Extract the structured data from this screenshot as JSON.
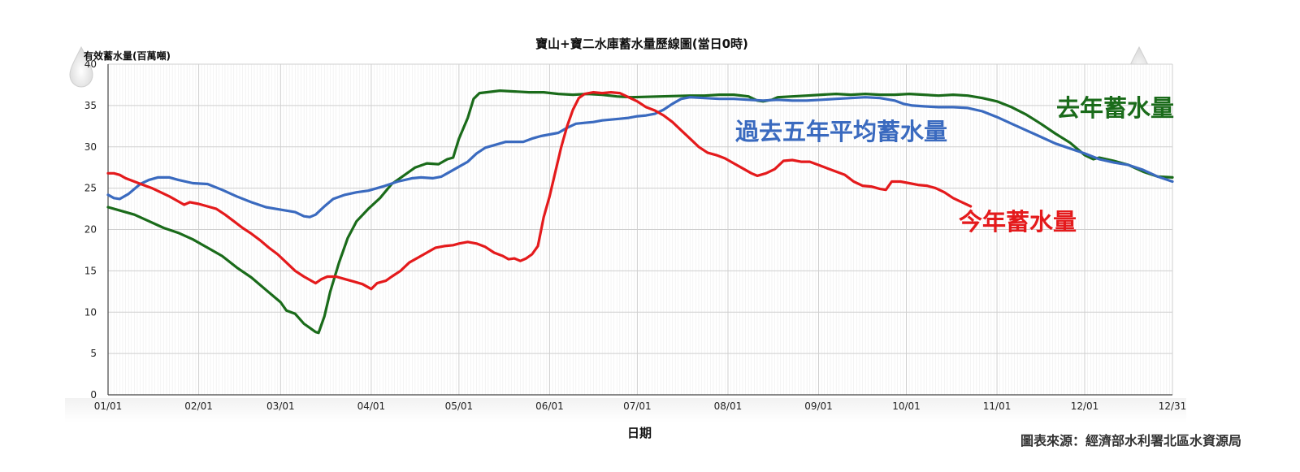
{
  "chart_data": {
    "type": "line",
    "title": "寶山+寶二水庫蓄水量歷線圖(當日0時)",
    "ylabel": "有效蓄水量(百萬噸)",
    "xlabel": "日期",
    "source": "圖表來源：經濟部水利署北區水資源局",
    "ylim": [
      0,
      40
    ],
    "xlim": [
      1,
      365
    ],
    "yticks": [
      "0",
      "5",
      "10",
      "15",
      "20",
      "25",
      "30",
      "35",
      "40"
    ],
    "xticks": [
      {
        "label": "01/01",
        "day": 1
      },
      {
        "label": "02/01",
        "day": 32
      },
      {
        "label": "03/01",
        "day": 60
      },
      {
        "label": "04/01",
        "day": 91
      },
      {
        "label": "05/01",
        "day": 121
      },
      {
        "label": "06/01",
        "day": 152
      },
      {
        "label": "07/01",
        "day": 182
      },
      {
        "label": "08/01",
        "day": 213
      },
      {
        "label": "09/01",
        "day": 244
      },
      {
        "label": "10/01",
        "day": 274
      },
      {
        "label": "11/01",
        "day": 305
      },
      {
        "label": "12/01",
        "day": 335
      },
      {
        "label": "12/31",
        "day": 365
      }
    ],
    "grid": true,
    "series": [
      {
        "name": "去年蓄水量",
        "color": "#1a6b1a",
        "points": [
          [
            1,
            22.7
          ],
          [
            5,
            22.3
          ],
          [
            10,
            21.8
          ],
          [
            15,
            21.0
          ],
          [
            20,
            20.2
          ],
          [
            25,
            19.6
          ],
          [
            30,
            18.8
          ],
          [
            35,
            17.8
          ],
          [
            40,
            16.8
          ],
          [
            45,
            15.4
          ],
          [
            50,
            14.2
          ],
          [
            55,
            12.7
          ],
          [
            60,
            11.2
          ],
          [
            62,
            10.2
          ],
          [
            65,
            9.8
          ],
          [
            68,
            8.6
          ],
          [
            70,
            8.1
          ],
          [
            72,
            7.6
          ],
          [
            73,
            7.5
          ],
          [
            75,
            9.5
          ],
          [
            77,
            12.5
          ],
          [
            80,
            16.0
          ],
          [
            83,
            19.0
          ],
          [
            86,
            21.0
          ],
          [
            90,
            22.5
          ],
          [
            94,
            23.8
          ],
          [
            98,
            25.5
          ],
          [
            102,
            26.5
          ],
          [
            106,
            27.5
          ],
          [
            110,
            28.0
          ],
          [
            114,
            27.9
          ],
          [
            117,
            28.5
          ],
          [
            119,
            28.7
          ],
          [
            121,
            31.0
          ],
          [
            124,
            33.5
          ],
          [
            126,
            35.8
          ],
          [
            128,
            36.5
          ],
          [
            135,
            36.8
          ],
          [
            140,
            36.7
          ],
          [
            145,
            36.6
          ],
          [
            150,
            36.6
          ],
          [
            155,
            36.4
          ],
          [
            160,
            36.3
          ],
          [
            165,
            36.4
          ],
          [
            170,
            36.3
          ],
          [
            175,
            36.1
          ],
          [
            180,
            36.0
          ],
          [
            190,
            36.1
          ],
          [
            200,
            36.2
          ],
          [
            205,
            36.2
          ],
          [
            210,
            36.3
          ],
          [
            215,
            36.3
          ],
          [
            220,
            36.1
          ],
          [
            223,
            35.6
          ],
          [
            225,
            35.5
          ],
          [
            228,
            35.7
          ],
          [
            230,
            36.0
          ],
          [
            235,
            36.1
          ],
          [
            240,
            36.2
          ],
          [
            245,
            36.3
          ],
          [
            250,
            36.4
          ],
          [
            255,
            36.3
          ],
          [
            260,
            36.4
          ],
          [
            265,
            36.3
          ],
          [
            270,
            36.3
          ],
          [
            275,
            36.4
          ],
          [
            280,
            36.3
          ],
          [
            285,
            36.2
          ],
          [
            290,
            36.3
          ],
          [
            295,
            36.2
          ],
          [
            300,
            35.9
          ],
          [
            305,
            35.5
          ],
          [
            310,
            34.8
          ],
          [
            315,
            33.9
          ],
          [
            320,
            32.8
          ],
          [
            325,
            31.6
          ],
          [
            330,
            30.5
          ],
          [
            335,
            29.0
          ],
          [
            338,
            28.5
          ],
          [
            340,
            28.7
          ],
          [
            345,
            28.3
          ],
          [
            350,
            27.8
          ],
          [
            355,
            27.0
          ],
          [
            360,
            26.4
          ],
          [
            365,
            26.3
          ]
        ]
      },
      {
        "name": "過去五年平均蓄水量",
        "color": "#3a6abf",
        "points": [
          [
            1,
            24.2
          ],
          [
            3,
            23.8
          ],
          [
            5,
            23.7
          ],
          [
            8,
            24.3
          ],
          [
            12,
            25.5
          ],
          [
            15,
            26.0
          ],
          [
            18,
            26.3
          ],
          [
            22,
            26.3
          ],
          [
            25,
            26.0
          ],
          [
            30,
            25.6
          ],
          [
            35,
            25.5
          ],
          [
            40,
            24.8
          ],
          [
            45,
            24.0
          ],
          [
            50,
            23.3
          ],
          [
            55,
            22.7
          ],
          [
            60,
            22.4
          ],
          [
            65,
            22.1
          ],
          [
            68,
            21.6
          ],
          [
            70,
            21.5
          ],
          [
            72,
            21.8
          ],
          [
            75,
            22.8
          ],
          [
            78,
            23.7
          ],
          [
            82,
            24.2
          ],
          [
            86,
            24.5
          ],
          [
            90,
            24.7
          ],
          [
            95,
            25.2
          ],
          [
            100,
            25.8
          ],
          [
            105,
            26.2
          ],
          [
            108,
            26.3
          ],
          [
            112,
            26.2
          ],
          [
            115,
            26.4
          ],
          [
            118,
            27.0
          ],
          [
            121,
            27.6
          ],
          [
            124,
            28.2
          ],
          [
            127,
            29.2
          ],
          [
            130,
            29.9
          ],
          [
            134,
            30.3
          ],
          [
            137,
            30.6
          ],
          [
            140,
            30.6
          ],
          [
            143,
            30.6
          ],
          [
            146,
            31.0
          ],
          [
            149,
            31.3
          ],
          [
            152,
            31.5
          ],
          [
            155,
            31.7
          ],
          [
            158,
            32.3
          ],
          [
            161,
            32.8
          ],
          [
            164,
            32.9
          ],
          [
            167,
            33.0
          ],
          [
            170,
            33.2
          ],
          [
            173,
            33.3
          ],
          [
            176,
            33.4
          ],
          [
            179,
            33.5
          ],
          [
            182,
            33.7
          ],
          [
            185,
            33.8
          ],
          [
            188,
            34.0
          ],
          [
            191,
            34.5
          ],
          [
            194,
            35.2
          ],
          [
            197,
            35.8
          ],
          [
            200,
            36.0
          ],
          [
            205,
            35.9
          ],
          [
            210,
            35.8
          ],
          [
            215,
            35.8
          ],
          [
            220,
            35.7
          ],
          [
            225,
            35.6
          ],
          [
            230,
            35.7
          ],
          [
            235,
            35.6
          ],
          [
            240,
            35.6
          ],
          [
            245,
            35.7
          ],
          [
            250,
            35.8
          ],
          [
            255,
            35.9
          ],
          [
            260,
            36.0
          ],
          [
            265,
            35.9
          ],
          [
            270,
            35.6
          ],
          [
            273,
            35.2
          ],
          [
            276,
            35.0
          ],
          [
            280,
            34.9
          ],
          [
            285,
            34.8
          ],
          [
            290,
            34.8
          ],
          [
            295,
            34.7
          ],
          [
            300,
            34.3
          ],
          [
            305,
            33.6
          ],
          [
            310,
            32.8
          ],
          [
            315,
            32.0
          ],
          [
            320,
            31.2
          ],
          [
            325,
            30.4
          ],
          [
            330,
            29.8
          ],
          [
            335,
            29.2
          ],
          [
            340,
            28.5
          ],
          [
            345,
            28.1
          ],
          [
            350,
            27.8
          ],
          [
            355,
            27.2
          ],
          [
            360,
            26.4
          ],
          [
            365,
            25.8
          ]
        ]
      },
      {
        "name": "今年蓄水量",
        "color": "#e41a1c",
        "points": [
          [
            1,
            26.8
          ],
          [
            3,
            26.8
          ],
          [
            5,
            26.6
          ],
          [
            7,
            26.2
          ],
          [
            10,
            25.8
          ],
          [
            13,
            25.4
          ],
          [
            16,
            25.0
          ],
          [
            19,
            24.5
          ],
          [
            22,
            24.0
          ],
          [
            25,
            23.4
          ],
          [
            27,
            23.0
          ],
          [
            29,
            23.3
          ],
          [
            32,
            23.1
          ],
          [
            35,
            22.8
          ],
          [
            38,
            22.5
          ],
          [
            41,
            21.8
          ],
          [
            44,
            21.0
          ],
          [
            47,
            20.2
          ],
          [
            50,
            19.5
          ],
          [
            53,
            18.7
          ],
          [
            56,
            17.8
          ],
          [
            59,
            17.0
          ],
          [
            62,
            16.0
          ],
          [
            65,
            15.0
          ],
          [
            68,
            14.3
          ],
          [
            71,
            13.7
          ],
          [
            72,
            13.5
          ],
          [
            74,
            14.0
          ],
          [
            76,
            14.3
          ],
          [
            79,
            14.3
          ],
          [
            82,
            14.0
          ],
          [
            85,
            13.7
          ],
          [
            88,
            13.4
          ],
          [
            90,
            13.0
          ],
          [
            91,
            12.8
          ],
          [
            93,
            13.5
          ],
          [
            96,
            13.8
          ],
          [
            98,
            14.3
          ],
          [
            101,
            15.0
          ],
          [
            104,
            16.0
          ],
          [
            107,
            16.6
          ],
          [
            110,
            17.2
          ],
          [
            113,
            17.8
          ],
          [
            116,
            18.0
          ],
          [
            119,
            18.1
          ],
          [
            121,
            18.3
          ],
          [
            124,
            18.5
          ],
          [
            127,
            18.3
          ],
          [
            130,
            17.9
          ],
          [
            133,
            17.2
          ],
          [
            136,
            16.8
          ],
          [
            138,
            16.4
          ],
          [
            140,
            16.5
          ],
          [
            142,
            16.2
          ],
          [
            144,
            16.5
          ],
          [
            146,
            17.0
          ],
          [
            148,
            18.0
          ],
          [
            150,
            21.5
          ],
          [
            152,
            24.0
          ],
          [
            154,
            27.0
          ],
          [
            156,
            30.0
          ],
          [
            158,
            32.5
          ],
          [
            160,
            34.5
          ],
          [
            162,
            35.9
          ],
          [
            164,
            36.4
          ],
          [
            167,
            36.6
          ],
          [
            170,
            36.5
          ],
          [
            173,
            36.6
          ],
          [
            176,
            36.5
          ],
          [
            179,
            36.0
          ],
          [
            182,
            35.5
          ],
          [
            185,
            34.8
          ],
          [
            188,
            34.4
          ],
          [
            191,
            33.8
          ],
          [
            194,
            33.0
          ],
          [
            197,
            32.0
          ],
          [
            200,
            31.0
          ],
          [
            203,
            30.0
          ],
          [
            206,
            29.3
          ],
          [
            209,
            29.0
          ],
          [
            212,
            28.6
          ],
          [
            215,
            28.0
          ],
          [
            218,
            27.4
          ],
          [
            221,
            26.8
          ],
          [
            223,
            26.5
          ],
          [
            226,
            26.8
          ],
          [
            229,
            27.3
          ],
          [
            232,
            28.3
          ],
          [
            235,
            28.4
          ],
          [
            238,
            28.2
          ],
          [
            241,
            28.2
          ],
          [
            244,
            27.8
          ],
          [
            247,
            27.4
          ],
          [
            250,
            27.0
          ],
          [
            253,
            26.6
          ],
          [
            256,
            25.8
          ],
          [
            259,
            25.3
          ],
          [
            262,
            25.2
          ],
          [
            265,
            24.9
          ],
          [
            267,
            24.8
          ],
          [
            269,
            25.8
          ],
          [
            272,
            25.8
          ],
          [
            275,
            25.6
          ],
          [
            278,
            25.4
          ],
          [
            281,
            25.3
          ],
          [
            284,
            25.0
          ],
          [
            287,
            24.5
          ],
          [
            290,
            23.8
          ],
          [
            293,
            23.3
          ],
          [
            296,
            22.8
          ]
        ]
      }
    ],
    "labels": [
      {
        "text": "去年蓄水量",
        "color": "#1a6b1a"
      },
      {
        "text": "過去五年平均蓄水量",
        "color": "#3a6abf"
      },
      {
        "text": "今年蓄水量",
        "color": "#e41a1c"
      }
    ]
  }
}
